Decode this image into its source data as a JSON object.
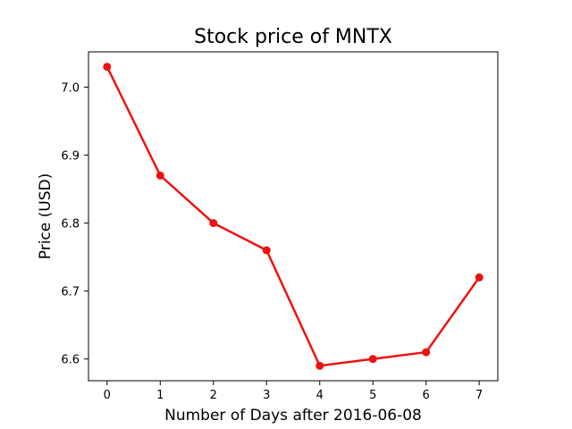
{
  "chart_data": {
    "type": "line",
    "title": "Stock price of MNTX",
    "xlabel": "Number of Days after 2016-06-08",
    "ylabel": "Price (USD)",
    "x": [
      0,
      1,
      2,
      3,
      4,
      5,
      6,
      7
    ],
    "series": [
      {
        "values": [
          7.03,
          6.87,
          6.8,
          6.76,
          6.59,
          6.6,
          6.61,
          6.72
        ],
        "color": "#ee1111",
        "marker": "circle"
      }
    ],
    "xlim": [
      -0.35,
      7.35
    ],
    "ylim": [
      6.568,
      7.052
    ],
    "xticks": [
      "0",
      "1",
      "2",
      "3",
      "4",
      "5",
      "6",
      "7"
    ],
    "yticks": [
      "6.6",
      "6.7",
      "6.8",
      "6.9",
      "7.0"
    ],
    "grid": false
  }
}
